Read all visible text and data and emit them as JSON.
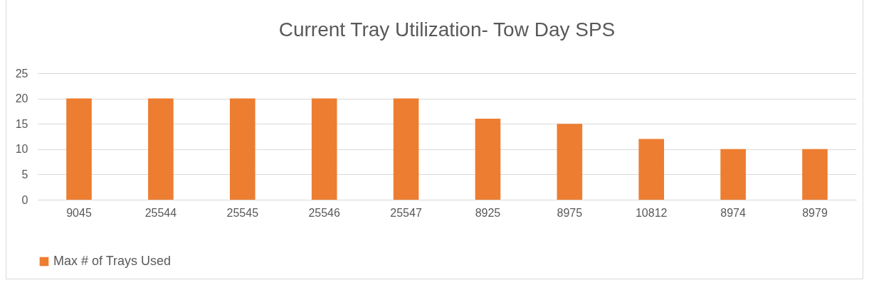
{
  "chart_data": {
    "type": "bar",
    "title": "Current Tray Utilization- Tow Day SPS",
    "categories": [
      "9045",
      "25544",
      "25545",
      "25546",
      "25547",
      "8925",
      "8975",
      "10812",
      "8974",
      "8979"
    ],
    "series": [
      {
        "name": "Max # of Trays Used",
        "color": "#ed7d31",
        "values": [
          20,
          20,
          20,
          20,
          20,
          16,
          15,
          12,
          10,
          10
        ]
      }
    ],
    "ylim": [
      0,
      25
    ],
    "yticks": [
      0,
      5,
      10,
      15,
      20,
      25
    ],
    "grid": "y",
    "legend": "bottom"
  }
}
